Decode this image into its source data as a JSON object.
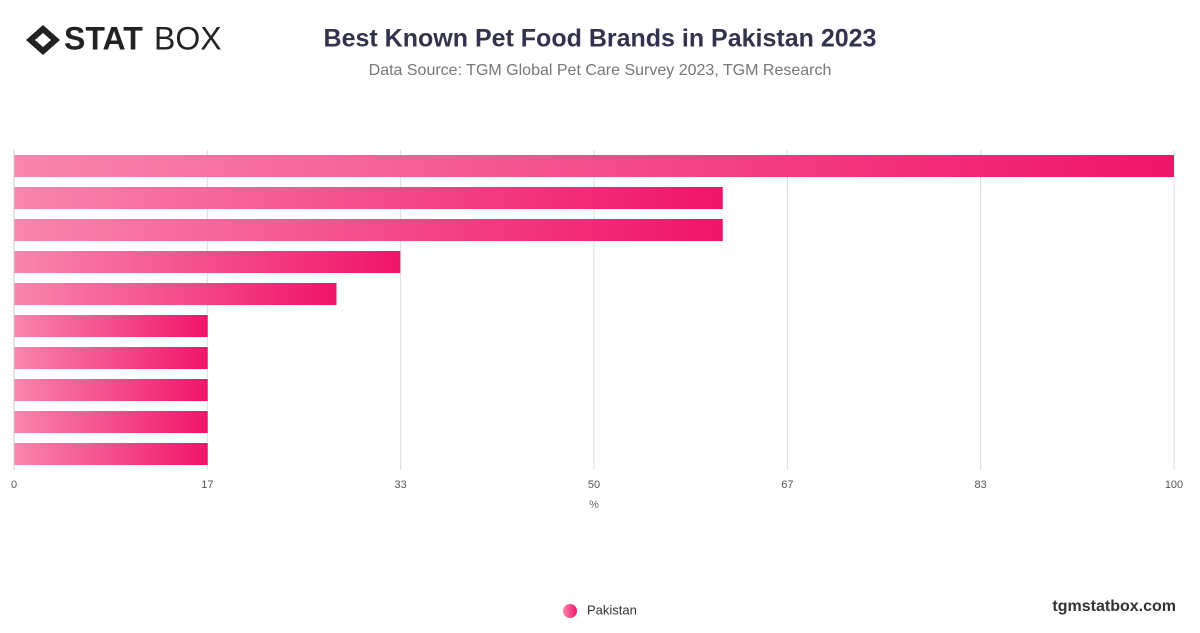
{
  "branding": {
    "logo_bold": "STAT",
    "logo_light": "BOX",
    "site": "tgmstatbox.com"
  },
  "chart_data": {
    "type": "hbar",
    "title": "Best Known Pet Food Brands in Pakistan 2023",
    "subtitle": "Data Source: TGM Global Pet Care Survey 2023, TGM Research",
    "x_label": "%",
    "categories": [
      null,
      null,
      null,
      null,
      null,
      null,
      null,
      null,
      null,
      null
    ],
    "series": [
      {
        "name": "Pakistan",
        "color": "#f0146a",
        "values": [
          100,
          61.1,
          61.1,
          33.3,
          27.8,
          16.7,
          16.7,
          16.7,
          16.7,
          16.7
        ]
      }
    ],
    "xlim": [
      0,
      100
    ],
    "xticks": [
      0,
      {
        "value": 16.67,
        "label": "17"
      },
      {
        "value": 33.33,
        "label": "33"
      },
      50,
      {
        "value": 66.67,
        "label": "67"
      },
      {
        "value": 83.33,
        "label": "83"
      },
      100
    ],
    "grid": true,
    "legend": "bottom"
  }
}
